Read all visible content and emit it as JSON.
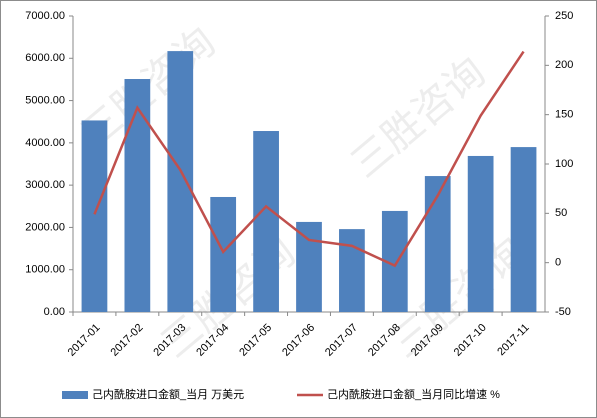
{
  "chart_data": {
    "type": "bar-line",
    "watermark": "三胜咨询",
    "categories": [
      "2017-01",
      "2017-02",
      "2017-03",
      "2017-04",
      "2017-05",
      "2017-06",
      "2017-07",
      "2017-08",
      "2017-09",
      "2017-10",
      "2017-11"
    ],
    "series": [
      {
        "name": "己内酰胺进口金额_当月 万美元",
        "type": "bar",
        "color": "#4f81bd",
        "values": [
          4530,
          5510,
          6170,
          2720,
          4280,
          2130,
          1960,
          2390,
          3215,
          3690,
          3900
        ]
      },
      {
        "name": "己内酰胺进口金额_当月同比增速 %",
        "type": "line",
        "axis": "y2",
        "color": "#c0504d",
        "values": [
          49,
          157,
          94,
          11,
          57,
          23,
          17,
          -3,
          68,
          149,
          214
        ]
      }
    ],
    "ylim": [
      0,
      7000
    ],
    "yticks": [
      {
        "value": 0,
        "label": "0.00"
      },
      {
        "value": 1000,
        "label": "1000.00"
      },
      {
        "value": 2000,
        "label": "2000.00"
      },
      {
        "value": 3000,
        "label": "3000.00"
      },
      {
        "value": 4000,
        "label": "4000.00"
      },
      {
        "value": 5000,
        "label": "5000.00"
      },
      {
        "value": 6000,
        "label": "6000.00"
      },
      {
        "value": 7000,
        "label": "7000.00"
      }
    ],
    "y2lim": [
      -50,
      250
    ],
    "y2ticks": [
      -50,
      0,
      50,
      100,
      150,
      200,
      250
    ],
    "legend": "bottom"
  }
}
